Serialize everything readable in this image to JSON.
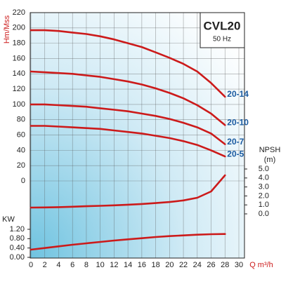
{
  "chart_data": [
    {
      "type": "line",
      "title": "CVL20",
      "subtitle": "50 Hz",
      "y_label": "Hm/Mss",
      "x_label": "Q m³/h",
      "xlim": [
        0,
        30
      ],
      "xticks": [
        0,
        2,
        4,
        6,
        8,
        10,
        12,
        14,
        16,
        18,
        20,
        22,
        24,
        26,
        28,
        30
      ],
      "ylim": [
        0,
        220
      ],
      "yticks": [
        0,
        20,
        40,
        60,
        80,
        100,
        120,
        140,
        160,
        180,
        200,
        220
      ],
      "grid": true,
      "x": [
        0,
        2,
        4,
        6,
        8,
        10,
        12,
        14,
        16,
        18,
        20,
        22,
        24,
        26,
        28
      ],
      "series": [
        {
          "name": "20-14",
          "color": "#cc1a1a",
          "values": [
            197,
            197,
            196,
            194,
            192,
            189,
            185,
            180,
            175,
            168,
            161,
            153,
            143,
            128,
            110
          ]
        },
        {
          "name": "20-10",
          "color": "#cc1a1a",
          "values": [
            143,
            142,
            141,
            140,
            138,
            136,
            133,
            130,
            126,
            121,
            115,
            108,
            99,
            88,
            73
          ]
        },
        {
          "name": "20-7",
          "color": "#cc1a1a",
          "values": [
            100,
            100,
            99,
            98,
            97,
            95,
            93,
            91,
            88,
            85,
            81,
            76,
            70,
            62,
            48
          ]
        },
        {
          "name": "20-5",
          "color": "#cc1a1a",
          "values": [
            72,
            72,
            71,
            70,
            69,
            68,
            66,
            64,
            62,
            59,
            56,
            52,
            47,
            40,
            32
          ]
        }
      ]
    },
    {
      "type": "line",
      "y_label": "NPSH",
      "y_unit": "(m)",
      "xlim": [
        0,
        30
      ],
      "ylim": [
        0,
        5
      ],
      "yticks": [
        {
          "value": 0,
          "label": "0.0"
        },
        {
          "value": 1,
          "label": "1.0"
        },
        {
          "value": 2,
          "label": "2.0"
        },
        {
          "value": 3,
          "label": "3.0"
        },
        {
          "value": 4,
          "label": "4.0"
        },
        {
          "value": 5,
          "label": "5.0"
        }
      ],
      "x": [
        0,
        2,
        4,
        6,
        8,
        10,
        12,
        14,
        16,
        18,
        20,
        22,
        24,
        26,
        28
      ],
      "series": [
        {
          "color": "#cc1a1a",
          "values": [
            0.7,
            0.72,
            0.75,
            0.8,
            0.85,
            0.9,
            0.95,
            1.02,
            1.1,
            1.2,
            1.32,
            1.5,
            1.8,
            2.5,
            4.3
          ]
        }
      ]
    },
    {
      "type": "line",
      "y_label": "KW",
      "xlim": [
        0,
        30
      ],
      "ylim": [
        0,
        1.2
      ],
      "yticks": [
        {
          "value": 0,
          "label": "0.00"
        },
        {
          "value": 0.4,
          "label": "0.40"
        },
        {
          "value": 0.8,
          "label": "0.80"
        },
        {
          "value": 1.2,
          "label": "1.20"
        }
      ],
      "x": [
        0,
        2,
        4,
        6,
        8,
        10,
        12,
        14,
        16,
        18,
        20,
        22,
        24,
        26,
        28
      ],
      "series": [
        {
          "color": "#cc1a1a",
          "values": [
            0.33,
            0.4,
            0.47,
            0.54,
            0.6,
            0.66,
            0.72,
            0.77,
            0.82,
            0.87,
            0.91,
            0.94,
            0.97,
            0.99,
            1.0
          ]
        }
      ]
    }
  ]
}
